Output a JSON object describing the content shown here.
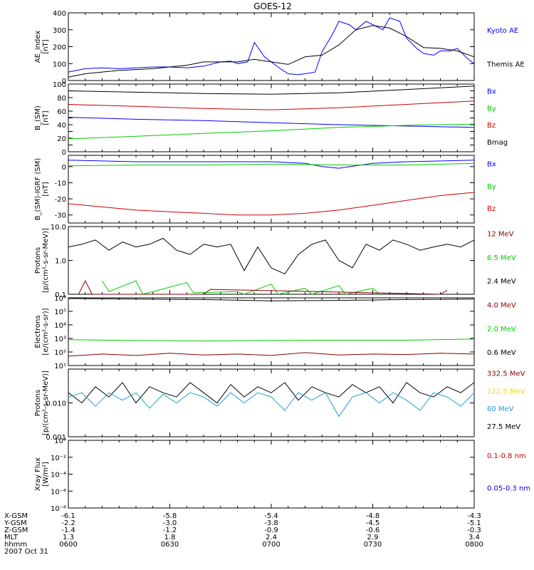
{
  "title": "GOES-12",
  "colors": {
    "black": "#000000",
    "blue": "#0000ff",
    "red": "#cc0000",
    "green": "#00cc00",
    "cyan": "#20a0d8",
    "yellow": "#ffd000",
    "darkred": "#880000"
  },
  "panels": [
    {
      "id": "ae",
      "ylabel": [
        "AE_index",
        "[nT]"
      ],
      "scale": "linear",
      "ylim": [
        0,
        400
      ],
      "ticks": [
        {
          "v": 0,
          "label": "0"
        },
        {
          "v": 100,
          "label": "100"
        },
        {
          "v": 200,
          "label": "200"
        },
        {
          "v": 300,
          "label": "300"
        },
        {
          "v": 400,
          "label": "400"
        }
      ],
      "legend": [
        {
          "label": "Kyoto AE",
          "color": "blue",
          "slot": 0.25
        },
        {
          "label": "Themis AE",
          "color": "black",
          "slot": 0.75
        }
      ]
    },
    {
      "id": "bsm",
      "ylabel": [
        "B_(SM)",
        "[nT]"
      ],
      "scale": "linear",
      "ylim": [
        0,
        100
      ],
      "ticks": [
        {
          "v": 0,
          "label": "0"
        },
        {
          "v": 10,
          "label": ""
        },
        {
          "v": 20,
          "label": "20"
        },
        {
          "v": 30,
          "label": ""
        },
        {
          "v": 40,
          "label": "40"
        },
        {
          "v": 50,
          "label": ""
        },
        {
          "v": 60,
          "label": "60"
        },
        {
          "v": 70,
          "label": ""
        },
        {
          "v": 80,
          "label": "80"
        },
        {
          "v": 90,
          "label": ""
        },
        {
          "v": 100,
          "label": "100"
        }
      ],
      "legend": [
        {
          "label": "Bx",
          "color": "blue",
          "slot": 0.1
        },
        {
          "label": "By",
          "color": "green",
          "slot": 0.35
        },
        {
          "label": "Bz",
          "color": "red",
          "slot": 0.6
        },
        {
          "label": "Bmag",
          "color": "black",
          "slot": 0.85
        }
      ]
    },
    {
      "id": "bigrf",
      "ylabel": [
        "B_(SM)-IGRF (SM)",
        "[nT]"
      ],
      "scale": "linear",
      "ylim": [
        -35,
        7
      ],
      "ticks": [
        {
          "v": 0,
          "label": "0"
        },
        {
          "v": -10,
          "label": "-10"
        },
        {
          "v": -20,
          "label": "-20"
        },
        {
          "v": -30,
          "label": "-30"
        }
      ],
      "legend": [
        {
          "label": "Bx",
          "color": "blue",
          "slot": 0.12
        },
        {
          "label": "By",
          "color": "green",
          "slot": 0.45
        },
        {
          "label": "Bz",
          "color": "red",
          "slot": 0.78
        }
      ]
    },
    {
      "id": "protons1",
      "ylabel": [
        "Protons",
        "[p/(cm²-s-sr-MeV)]"
      ],
      "scale": "log",
      "ylim": [
        0.1,
        10
      ],
      "ticks": [
        {
          "v": 0.1,
          "label": "0.1"
        },
        {
          "v": 1,
          "label": "1.0"
        },
        {
          "v": 10,
          "label": "10.0"
        }
      ],
      "legend": [
        {
          "label": "12 MeV",
          "color": "darkred",
          "slot": 0.1
        },
        {
          "label": "6.5 MeV",
          "color": "green",
          "slot": 0.45
        },
        {
          "label": "2.4 MeV",
          "color": "black",
          "slot": 0.8
        }
      ]
    },
    {
      "id": "electrons",
      "ylabel": [
        "Electrons",
        "[e/(cm²-s-sr)]"
      ],
      "scale": "log",
      "ylim": [
        10,
        1000000
      ],
      "ticks": [
        {
          "v": 10,
          "label": "10¹"
        },
        {
          "v": 100,
          "label": "10²"
        },
        {
          "v": 1000,
          "label": "10³"
        },
        {
          "v": 10000,
          "label": "10⁴"
        },
        {
          "v": 100000,
          "label": "10⁵"
        },
        {
          "v": 1000000,
          "label": "10⁶"
        }
      ],
      "legend": [
        {
          "label": "4.0 MeV",
          "color": "darkred",
          "slot": 0.1
        },
        {
          "label": "2.0 MeV",
          "color": "green",
          "slot": 0.45
        },
        {
          "label": "0.6 MeV",
          "color": "black",
          "slot": 0.8
        }
      ]
    },
    {
      "id": "protons2",
      "ylabel": [
        "Protons",
        "[p/(cm²-s-sr-MeV)]"
      ],
      "scale": "log",
      "ylim": [
        0.001,
        0.1
      ],
      "ticks": [
        {
          "v": 0.001,
          "label": "0.001"
        },
        {
          "v": 0.01,
          "label": "0.010"
        },
        {
          "v": 0.1,
          "label": ""
        }
      ],
      "legend": [
        {
          "label": "332.5 MeV",
          "color": "darkred",
          "slot": 0.06
        },
        {
          "label": "122.5 MeV",
          "color": "yellow",
          "slot": 0.32
        },
        {
          "label": "60 MeV",
          "color": "cyan",
          "slot": 0.58
        },
        {
          "label": "27.5 MeV",
          "color": "black",
          "slot": 0.84
        }
      ]
    },
    {
      "id": "xray",
      "ylabel": [
        "Xray Flux",
        "[W/m²]"
      ],
      "scale": "log",
      "ylim": [
        1e-08,
        1
      ],
      "ticks": [
        {
          "v": 1e-08,
          "label": "10⁻⁸"
        },
        {
          "v": 1e-06,
          "label": "10⁻⁶"
        },
        {
          "v": 0.0001,
          "label": "10⁻⁴"
        },
        {
          "v": 0.01,
          "label": "10⁻²"
        },
        {
          "v": 1,
          "label": "10⁰"
        }
      ],
      "legend": [
        {
          "label": "0.1-0.8 nm",
          "color": "red",
          "slot": 0.22
        },
        {
          "label": "0.05-0.3 nm",
          "color": "blue",
          "slot": 0.7
        }
      ]
    }
  ],
  "footer": {
    "rows": [
      {
        "label": "X-GSM",
        "values": [
          "-6.1",
          "-5.8",
          "-5.4",
          "-4.8",
          "-4.3"
        ]
      },
      {
        "label": "Y-GSM",
        "values": [
          "-2.2",
          "-3.0",
          "-3.8",
          "-4.5",
          "-5.1"
        ]
      },
      {
        "label": "Z-GSM",
        "values": [
          "-1.4",
          "-1.2",
          "-0.9",
          "-0.6",
          "-0.3"
        ]
      },
      {
        "label": "MLT",
        "values": [
          "1.3",
          "1.8",
          "2.4",
          "2.9",
          "3.4"
        ]
      },
      {
        "label": "hhmm",
        "values": [
          "0600",
          "0630",
          "0700",
          "0730",
          "0800"
        ]
      }
    ],
    "date": "2007 Oct 31"
  },
  "chart_data": {
    "type": "line",
    "title": "GOES-12",
    "x_times": [
      "0600",
      "0630",
      "0700",
      "0730",
      "0800"
    ],
    "xlim_minutes": [
      0,
      120
    ],
    "series": {
      "ae": [
        {
          "name": "Kyoto AE",
          "color": "blue",
          "t": [
            0,
            5,
            10,
            15,
            20,
            25,
            30,
            35,
            40,
            45,
            48,
            50,
            53,
            55,
            58,
            60,
            63,
            65,
            68,
            70,
            73,
            75,
            78,
            80,
            83,
            85,
            88,
            90,
            93,
            95,
            98,
            100,
            103,
            105,
            108,
            110,
            113,
            115,
            118,
            120
          ],
          "v": [
            50,
            70,
            75,
            70,
            75,
            80,
            80,
            75,
            85,
            110,
            115,
            100,
            110,
            225,
            140,
            110,
            65,
            40,
            35,
            40,
            50,
            170,
            270,
            350,
            330,
            300,
            350,
            330,
            300,
            370,
            350,
            250,
            190,
            160,
            150,
            175,
            175,
            190,
            130,
            100
          ]
        },
        {
          "name": "Themis AE",
          "color": "black",
          "t": [
            0,
            5,
            10,
            15,
            20,
            25,
            30,
            35,
            40,
            45,
            50,
            55,
            60,
            65,
            70,
            75,
            80,
            85,
            90,
            95,
            100,
            105,
            110,
            115,
            120
          ],
          "v": [
            20,
            40,
            50,
            60,
            65,
            70,
            80,
            90,
            110,
            110,
            110,
            125,
            110,
            95,
            140,
            150,
            210,
            300,
            325,
            310,
            260,
            195,
            190,
            175,
            140
          ]
        }
      ],
      "bsm": [
        {
          "name": "Bx",
          "color": "blue",
          "t": [
            0,
            20,
            40,
            60,
            80,
            100,
            120
          ],
          "v": [
            51,
            48,
            46,
            43,
            40,
            38,
            36
          ]
        },
        {
          "name": "By",
          "color": "green",
          "t": [
            0,
            20,
            40,
            60,
            80,
            100,
            120
          ],
          "v": [
            19,
            23,
            27,
            31,
            36,
            39,
            41
          ]
        },
        {
          "name": "Bz",
          "color": "red",
          "t": [
            0,
            20,
            40,
            60,
            80,
            100,
            120
          ],
          "v": [
            70,
            67,
            64,
            62,
            65,
            70,
            75
          ]
        },
        {
          "name": "Bmag",
          "color": "black",
          "t": [
            0,
            20,
            40,
            60,
            80,
            100,
            120
          ],
          "v": [
            90,
            88,
            86,
            85,
            87,
            92,
            97
          ]
        }
      ],
      "bigrf": [
        {
          "name": "Bx",
          "color": "blue",
          "t": [
            0,
            20,
            40,
            60,
            70,
            75,
            80,
            90,
            100,
            120
          ],
          "v": [
            4,
            3,
            3,
            3,
            2,
            0,
            -1,
            2,
            3,
            4
          ]
        },
        {
          "name": "By",
          "color": "green",
          "t": [
            0,
            20,
            40,
            60,
            80,
            100,
            120
          ],
          "v": [
            0.5,
            1,
            1,
            1.5,
            1,
            1,
            2
          ]
        },
        {
          "name": "Bz",
          "color": "red",
          "t": [
            0,
            10,
            20,
            30,
            40,
            50,
            60,
            70,
            80,
            90,
            100,
            110,
            120
          ],
          "v": [
            -23,
            -25,
            -27,
            -28,
            -29,
            -30,
            -30,
            -29,
            -27,
            -24,
            -21,
            -18,
            -16
          ]
        }
      ],
      "protons1": [
        {
          "name": "2.4 MeV",
          "color": "black",
          "t": [
            0,
            4,
            8,
            12,
            16,
            20,
            24,
            28,
            32,
            36,
            40,
            44,
            48,
            52,
            56,
            60,
            64,
            68,
            72,
            76,
            80,
            84,
            88,
            92,
            96,
            100,
            104,
            108,
            112,
            116,
            120
          ],
          "v": [
            2.5,
            3,
            4,
            2,
            3.5,
            2.5,
            3,
            4.5,
            2,
            1.5,
            3,
            2.5,
            3,
            0.5,
            2.5,
            0.6,
            0.4,
            1.5,
            3,
            4,
            1,
            0.6,
            3,
            2,
            4,
            3,
            2,
            2.5,
            3,
            2.5,
            4
          ]
        },
        {
          "name": "6.5 MeV",
          "color": "green",
          "t": [
            10,
            12,
            20,
            22,
            35,
            37,
            50,
            52,
            60,
            62,
            70,
            72,
            80,
            82,
            90,
            92
          ],
          "v": [
            0.25,
            0.12,
            0.25,
            0.1,
            0.22,
            0.11,
            0.12,
            0.1,
            0.2,
            0.1,
            0.15,
            0.1,
            0.18,
            0.1,
            0.15,
            0.1
          ]
        },
        {
          "name": "12 MeV",
          "color": "darkred",
          "t": [
            3,
            5,
            7,
            40,
            42,
            110,
            112
          ],
          "v": [
            0.1,
            0.25,
            0.1,
            0.1,
            0.14,
            0.1,
            0.13
          ]
        }
      ],
      "electrons": [
        {
          "name": "4.0 MeV",
          "color": "darkred",
          "t": [
            0,
            10,
            20,
            30,
            40,
            50,
            60,
            70,
            80,
            90,
            100,
            110,
            120
          ],
          "v": [
            50,
            70,
            55,
            80,
            60,
            70,
            55,
            90,
            60,
            70,
            65,
            80,
            70
          ]
        },
        {
          "name": "2.0 MeV",
          "color": "green",
          "t": [
            0,
            20,
            40,
            60,
            80,
            100,
            120
          ],
          "v": [
            800,
            700,
            650,
            700,
            750,
            750,
            900
          ]
        },
        {
          "name": "0.6 MeV",
          "color": "black",
          "t": [
            0,
            20,
            40,
            60,
            80,
            100,
            120
          ],
          "v": [
            900000,
            800000,
            750000,
            600000,
            650000,
            750000,
            800000
          ]
        }
      ],
      "protons2": [
        {
          "name": "27.5 MeV",
          "color": "black",
          "t": [
            0,
            4,
            8,
            12,
            16,
            20,
            24,
            28,
            32,
            36,
            40,
            44,
            48,
            52,
            56,
            60,
            64,
            68,
            72,
            76,
            80,
            84,
            88,
            92,
            96,
            100,
            104,
            108,
            112,
            116,
            120
          ],
          "v": [
            0.02,
            0.01,
            0.03,
            0.015,
            0.04,
            0.01,
            0.03,
            0.02,
            0.015,
            0.04,
            0.02,
            0.01,
            0.035,
            0.015,
            0.03,
            0.02,
            0.04,
            0.012,
            0.03,
            0.02,
            0.015,
            0.035,
            0.02,
            0.03,
            0.01,
            0.04,
            0.02,
            0.015,
            0.03,
            0.02,
            0.04
          ]
        },
        {
          "name": "60 MeV",
          "color": "cyan",
          "t": [
            0,
            4,
            8,
            12,
            16,
            20,
            24,
            28,
            32,
            36,
            40,
            44,
            48,
            52,
            56,
            60,
            64,
            68,
            72,
            76,
            80,
            84,
            88,
            92,
            96,
            100,
            104,
            108,
            112,
            116,
            120
          ],
          "v": [
            0.015,
            0.02,
            0.008,
            0.02,
            0.012,
            0.02,
            0.007,
            0.018,
            0.01,
            0.02,
            0.015,
            0.008,
            0.02,
            0.01,
            0.02,
            0.015,
            0.006,
            0.02,
            0.012,
            0.02,
            0.004,
            0.015,
            0.02,
            0.01,
            0.02,
            0.012,
            0.006,
            0.02,
            0.015,
            0.008,
            0.02
          ]
        }
      ],
      "xray": []
    }
  }
}
